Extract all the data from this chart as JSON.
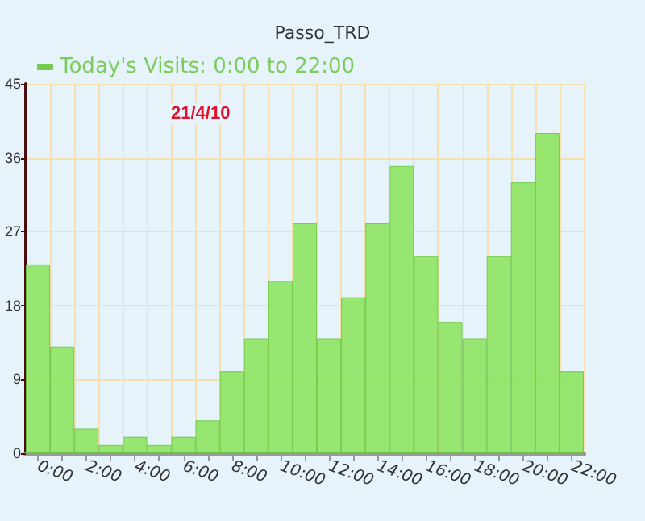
{
  "chart_data": {
    "type": "bar",
    "title": "Passo_TRD",
    "categories": [
      "0:00",
      null,
      "2:00",
      null,
      "4:00",
      null,
      "6:00",
      null,
      "8:00",
      null,
      "10:00",
      null,
      "12:00",
      null,
      "14:00",
      null,
      "16:00",
      null,
      "18:00",
      null,
      "20:00",
      null,
      "22:00"
    ],
    "series": [
      {
        "name": "Today's Visits: 0:00 to 22:00",
        "color": "#8ee462",
        "values": [
          23,
          13,
          3,
          1,
          2,
          1,
          2,
          4,
          10,
          14,
          21,
          28,
          14,
          19,
          28,
          35,
          24,
          16,
          14,
          24,
          33,
          39,
          10
        ]
      }
    ],
    "ylim": [
      0,
      45
    ],
    "yticks": [
      0,
      9,
      18,
      27,
      36,
      45
    ],
    "grid": true,
    "legend": "top left",
    "annotations": [
      "21/4/10"
    ]
  }
}
